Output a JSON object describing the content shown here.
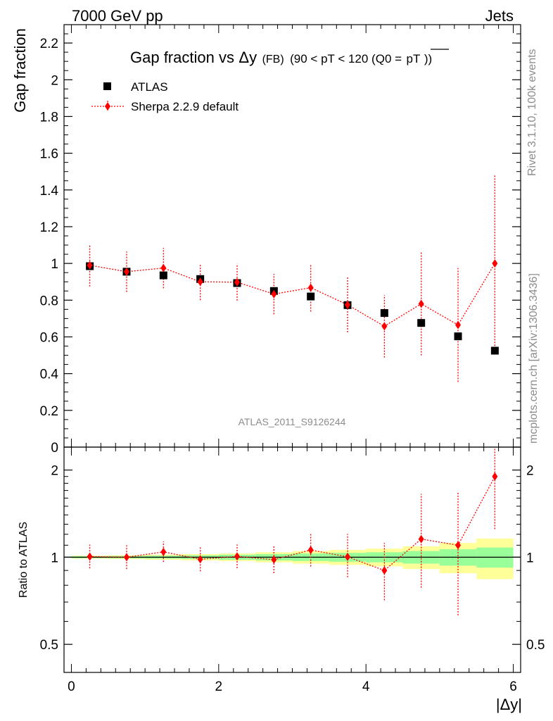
{
  "header": {
    "left": "7000 GeV pp",
    "right": "Jets"
  },
  "side": {
    "rivet": "Rivet 3.1.10,  100k events",
    "mcplots": "mcplots.cern.ch [arXiv:1306.3436]"
  },
  "colors": {
    "data": "#000000",
    "mc": "#ff0000",
    "band_inner": "#99ff99",
    "band_outer": "#ffff99"
  },
  "chart_data": [
    {
      "type": "scatter",
      "title_main": "Gap fraction vs",
      "title_delta": "Δy",
      "title_fb": "(FB)",
      "title_range": "(90 < pT < 120 (Q0 =",
      "title_pt": "pT",
      "title_close": "))",
      "watermark": "ATLAS_2011_S9126244",
      "ylabel": "Gap fraction",
      "ylim": [
        0,
        2.3
      ],
      "xlim": [
        -0.1,
        6.1
      ],
      "yticks": [
        0,
        0.2,
        0.4,
        0.6,
        0.8,
        1,
        1.2,
        1.4,
        1.6,
        1.8,
        2,
        2.2
      ],
      "ytick_labels": [
        "0",
        "0.2",
        "0.4",
        "0.6",
        "0.8",
        "1",
        "1.2",
        "1.4",
        "1.6",
        "1.8",
        "2",
        "2.2"
      ],
      "legend_position": "top-left",
      "x": [
        0.25,
        0.75,
        1.25,
        1.75,
        2.25,
        2.75,
        3.25,
        3.75,
        4.25,
        4.75,
        5.25,
        5.75
      ],
      "series": [
        {
          "name": "ATLAS",
          "marker": "square",
          "values": [
            0.985,
            0.955,
            0.935,
            0.915,
            0.893,
            0.85,
            0.82,
            0.773,
            0.73,
            0.676,
            0.603,
            0.525
          ],
          "err": [
            0.02,
            0.02,
            0.02,
            0.02,
            0.02,
            0.02,
            0.02,
            0.02,
            0.02,
            0.02,
            0.02,
            0.02
          ]
        },
        {
          "name": "Sherpa 2.2.9 default",
          "marker": "diamond",
          "values": [
            0.99,
            0.955,
            0.975,
            0.9,
            0.898,
            0.833,
            0.868,
            0.775,
            0.658,
            0.78,
            0.665,
            1.0
          ],
          "err": [
            0.115,
            0.11,
            0.11,
            0.1,
            0.1,
            0.11,
            0.13,
            0.15,
            0.17,
            0.28,
            0.31,
            0.48
          ]
        }
      ]
    },
    {
      "type": "scatter",
      "ylabel": "Ratio to ATLAS",
      "xlabel": "|Δy|",
      "ylim": [
        0.4,
        2.4
      ],
      "log_y": true,
      "xlim": [
        -0.1,
        6.1
      ],
      "yticks": [
        0.5,
        1,
        2
      ],
      "ytick_labels": [
        "0.5",
        "1",
        "2"
      ],
      "xticks": [
        0,
        2,
        4,
        6
      ],
      "xtick_labels": [
        "0",
        "2",
        "4",
        "6"
      ],
      "x": [
        0.25,
        0.75,
        1.25,
        1.75,
        2.25,
        2.75,
        3.25,
        3.75,
        4.25,
        4.75,
        5.25,
        5.75
      ],
      "bands": {
        "edges": [
          0,
          0.5,
          1,
          1.5,
          2,
          2.5,
          3,
          3.5,
          4,
          4.5,
          5,
          5.5,
          6
        ],
        "inner": [
          0.008,
          0.01,
          0.012,
          0.015,
          0.02,
          0.025,
          0.03,
          0.035,
          0.04,
          0.05,
          0.065,
          0.08
        ],
        "outer": [
          0.012,
          0.015,
          0.02,
          0.025,
          0.03,
          0.04,
          0.05,
          0.06,
          0.07,
          0.09,
          0.12,
          0.16
        ]
      },
      "series": [
        {
          "name": "Sherpa 2.2.9 default",
          "marker": "diamond",
          "values": [
            1.005,
            1.0,
            1.043,
            0.984,
            1.006,
            0.981,
            1.059,
            1.003,
            0.9,
            1.155,
            1.1,
            1.9
          ],
          "err_lo": [
            0.09,
            0.09,
            0.08,
            0.09,
            0.09,
            0.1,
            0.13,
            0.15,
            0.19,
            0.37,
            0.47,
            0.65
          ],
          "err_hi": [
            0.1,
            0.1,
            0.09,
            0.1,
            0.1,
            0.11,
            0.15,
            0.2,
            0.22,
            0.5,
            0.58,
            0.7
          ]
        }
      ]
    }
  ]
}
